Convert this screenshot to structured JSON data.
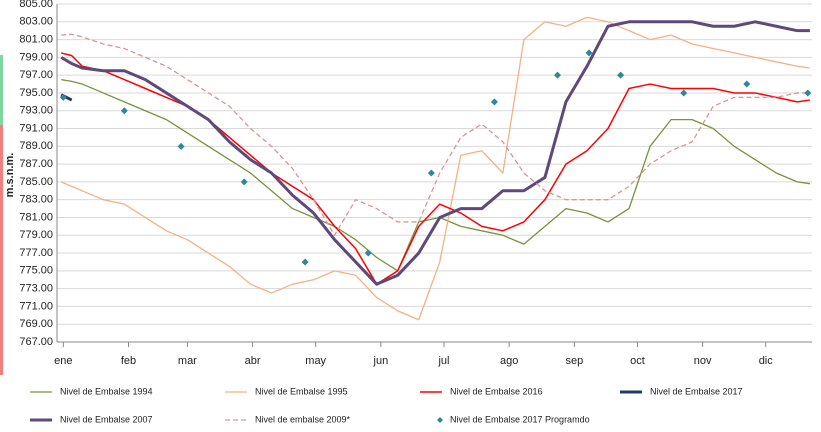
{
  "chart_data": {
    "type": "line",
    "y_label": "m.s.n.m.",
    "x": [
      0,
      5,
      10,
      20,
      30,
      40,
      50,
      60,
      70,
      80,
      90,
      100,
      110,
      120,
      130,
      140,
      150,
      160,
      170,
      180,
      190,
      200,
      210,
      220,
      230,
      240,
      250,
      260,
      270,
      280,
      290,
      300,
      310,
      320,
      330,
      340,
      350,
      356
    ],
    "xlim": [
      -2,
      357
    ],
    "xticks": [
      {
        "value": 1,
        "label": "ene"
      },
      {
        "value": 32,
        "label": "feb"
      },
      {
        "value": 60,
        "label": "mar"
      },
      {
        "value": 91,
        "label": "abr"
      },
      {
        "value": 121,
        "label": "may"
      },
      {
        "value": 152,
        "label": "jun"
      },
      {
        "value": 182,
        "label": "jul"
      },
      {
        "value": 213,
        "label": "ago"
      },
      {
        "value": 244,
        "label": "sep"
      },
      {
        "value": 274,
        "label": "oct"
      },
      {
        "value": 305,
        "label": "nov"
      },
      {
        "value": 335,
        "label": "dic"
      }
    ],
    "ylim": [
      767,
      805
    ],
    "yticks": [
      {
        "value": 767,
        "label": "767.00"
      },
      {
        "value": 769,
        "label": "769.00"
      },
      {
        "value": 771,
        "label": "771.00"
      },
      {
        "value": 773,
        "label": "773.00"
      },
      {
        "value": 775,
        "label": "775.00"
      },
      {
        "value": 777,
        "label": "777.00"
      },
      {
        "value": 779,
        "label": "779.00"
      },
      {
        "value": 781,
        "label": "781.00"
      },
      {
        "value": 783,
        "label": "783.00"
      },
      {
        "value": 785,
        "label": "785.00"
      },
      {
        "value": 787,
        "label": "787.00"
      },
      {
        "value": 789,
        "label": "789.00"
      },
      {
        "value": 791,
        "label": "791.00"
      },
      {
        "value": 793,
        "label": "793.00"
      },
      {
        "value": 795,
        "label": "795.00"
      },
      {
        "value": 797,
        "label": "797.00"
      },
      {
        "value": 799,
        "label": "799.00"
      },
      {
        "value": 801,
        "label": "801.00"
      },
      {
        "value": 803,
        "label": "803.00"
      },
      {
        "value": 805,
        "label": "805.00"
      }
    ],
    "grid": true,
    "series": [
      {
        "name": "Nivel de Embalse 1994",
        "color": "#77933c",
        "style": "solid",
        "width": 1.3,
        "values": [
          796.5,
          796.3,
          796,
          795,
          794,
          793,
          792,
          790.5,
          789,
          787.5,
          786,
          784,
          782,
          781,
          780,
          778.5,
          776.5,
          775,
          780.5,
          781,
          780,
          779.5,
          779,
          778,
          780,
          782,
          781.5,
          780.5,
          782,
          789,
          792,
          792,
          791,
          789,
          787.5,
          786,
          785,
          784.8
        ]
      },
      {
        "name": "Nivel de Embalse 1995",
        "color": "#f4b183",
        "style": "solid",
        "width": 1.3,
        "values": [
          785,
          784.5,
          784,
          783,
          782.5,
          781,
          779.5,
          778.5,
          777,
          775.5,
          773.5,
          772.5,
          773.5,
          774,
          775,
          774.5,
          772,
          770.5,
          769.5,
          776,
          788,
          788.5,
          786,
          801,
          803,
          802.5,
          803.5,
          803,
          802,
          801,
          801.5,
          800.5,
          800,
          799.5,
          799,
          798.5,
          798,
          797.8
        ]
      },
      {
        "name": "Nivel de Embalse 2016",
        "color": "#ff0000",
        "style": "solid",
        "width": 1.5,
        "values": [
          799.5,
          799.2,
          798,
          797.5,
          796.5,
          795.5,
          794.5,
          793.5,
          792,
          790,
          788,
          786,
          784.5,
          783,
          780,
          777.5,
          773.5,
          775,
          780,
          782.5,
          781.5,
          780,
          779.5,
          780.5,
          783,
          787,
          788.5,
          791,
          795.5,
          796,
          795.5,
          795.5,
          795.5,
          795,
          795,
          794.5,
          794,
          794.2
        ]
      },
      {
        "name": "Nivel de Embalse 2017",
        "color": "#1f3864",
        "style": "solid",
        "width": 3,
        "values": [
          794.8,
          794.2,
          null,
          null,
          null,
          null,
          null,
          null,
          null,
          null,
          null,
          null,
          null,
          null,
          null,
          null,
          null,
          null,
          null,
          null,
          null,
          null,
          null,
          null,
          null,
          null,
          null,
          null,
          null,
          null,
          null,
          null,
          null,
          null,
          null,
          null,
          null,
          null
        ]
      },
      {
        "name": "Nivel de Embalse 2007",
        "color": "#5f497a",
        "style": "solid",
        "width": 3,
        "values": [
          799,
          798.3,
          797.8,
          797.5,
          797.5,
          796.5,
          795,
          793.5,
          792,
          789.5,
          787.5,
          786,
          783.5,
          781.5,
          778.5,
          776,
          773.5,
          774.5,
          777,
          781,
          782,
          782,
          784,
          784,
          785.5,
          794,
          798,
          802.5,
          803,
          803,
          803,
          803,
          802.5,
          802.5,
          803,
          802.5,
          802,
          802
        ]
      },
      {
        "name": "Nivel de embalse 2009*",
        "color": "#d99694",
        "style": "dashed",
        "width": 1.3,
        "values": [
          801.5,
          801.6,
          801.3,
          800.5,
          800,
          799,
          798,
          796.5,
          795,
          793.5,
          791,
          789,
          786.5,
          783,
          779,
          783,
          782,
          780.5,
          780.5,
          786,
          790,
          791.5,
          789.5,
          786,
          784,
          783,
          783,
          783,
          784.5,
          787,
          788.5,
          789.5,
          793.5,
          794.5,
          794.5,
          794.5,
          795,
          795
        ]
      },
      {
        "name": "Nivel de Embalse 2017 Programdo",
        "color": "#31859c",
        "style": "marker",
        "x": [
          1,
          30,
          57,
          87,
          116,
          146,
          176,
          206,
          236,
          251,
          266,
          296,
          326,
          355
        ],
        "values": [
          794.5,
          793,
          789,
          785,
          776,
          777,
          786,
          794,
          797,
          799.5,
          797,
          795,
          796,
          795
        ]
      }
    ]
  }
}
